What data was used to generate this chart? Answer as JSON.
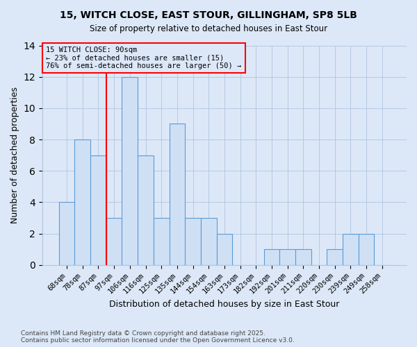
{
  "title_line1": "15, WITCH CLOSE, EAST STOUR, GILLINGHAM, SP8 5LB",
  "title_line2": "Size of property relative to detached houses in East Stour",
  "xlabel": "Distribution of detached houses by size in East Stour",
  "ylabel": "Number of detached properties",
  "categories": [
    "68sqm",
    "78sqm",
    "87sqm",
    "97sqm",
    "106sqm",
    "116sqm",
    "125sqm",
    "135sqm",
    "144sqm",
    "154sqm",
    "163sqm",
    "173sqm",
    "182sqm",
    "192sqm",
    "201sqm",
    "211sqm",
    "220sqm",
    "230sqm",
    "239sqm",
    "249sqm",
    "258sqm"
  ],
  "values": [
    4,
    8,
    7,
    3,
    12,
    7,
    3,
    9,
    3,
    3,
    2,
    0,
    0,
    1,
    1,
    1,
    0,
    1,
    2,
    2,
    0
  ],
  "bar_color": "#cfe0f5",
  "bar_edge_color": "#5b9bd5",
  "red_line_index": 2,
  "annotation_title": "15 WITCH CLOSE: 90sqm",
  "annotation_line1": "← 23% of detached houses are smaller (15)",
  "annotation_line2": "76% of semi-detached houses are larger (50) →",
  "ylim": [
    0,
    14
  ],
  "yticks": [
    0,
    2,
    4,
    6,
    8,
    10,
    12,
    14
  ],
  "footnote1": "Contains HM Land Registry data © Crown copyright and database right 2025.",
  "footnote2": "Contains public sector information licensed under the Open Government Licence v3.0.",
  "background_color": "#dce8f8"
}
